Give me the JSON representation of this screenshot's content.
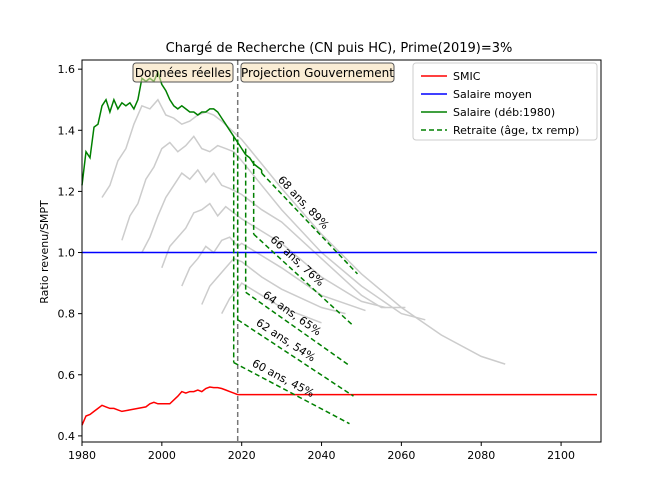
{
  "chart_data": {
    "type": "line",
    "title": "Chargé de Recherche (CN puis HC), Prime(2019)=3%",
    "xlabel": "",
    "ylabel": "Ratio revenu/SMPT",
    "xlim": [
      1980,
      2110
    ],
    "ylim": [
      0.38,
      1.63
    ],
    "xticks": [
      1980,
      2000,
      2020,
      2040,
      2060,
      2080,
      2100
    ],
    "yticks": [
      0.4,
      0.6,
      0.8,
      1.0,
      1.2,
      1.4,
      1.6
    ],
    "grid": false,
    "legend_position": "top-right",
    "divider_x": 2019,
    "region_labels": [
      "Données réelles",
      "Projection Gouvernement"
    ],
    "series": [
      {
        "name": "SMIC",
        "color": "#ff0000",
        "x": [
          1980,
          1981,
          1982,
          1983,
          1984,
          1985,
          1986,
          1987,
          1988,
          1989,
          1990,
          1992,
          1994,
          1996,
          1997,
          1998,
          1999,
          2000,
          2002,
          2004,
          2005,
          2006,
          2007,
          2008,
          2009,
          2010,
          2011,
          2012,
          2013,
          2014,
          2015,
          2016,
          2017,
          2018,
          2019,
          2109
        ],
        "values": [
          0.435,
          0.465,
          0.47,
          0.48,
          0.49,
          0.5,
          0.495,
          0.49,
          0.49,
          0.485,
          0.48,
          0.485,
          0.49,
          0.495,
          0.505,
          0.51,
          0.505,
          0.505,
          0.505,
          0.53,
          0.545,
          0.54,
          0.545,
          0.545,
          0.55,
          0.545,
          0.555,
          0.56,
          0.558,
          0.558,
          0.555,
          0.55,
          0.545,
          0.54,
          0.535,
          0.535
        ]
      },
      {
        "name": "Salaire moyen",
        "color": "#0000ff",
        "x": [
          1980,
          2109
        ],
        "values": [
          1.0,
          1.0
        ]
      },
      {
        "name": "Salaire (déb:1980)",
        "color": "#008000",
        "x": [
          1980,
          1981,
          1982,
          1983,
          1984,
          1985,
          1986,
          1987,
          1988,
          1989,
          1990,
          1991,
          1992,
          1993,
          1994,
          1995,
          1996,
          1997,
          1998,
          1999,
          2000,
          2001,
          2002,
          2003,
          2004,
          2005,
          2006,
          2007,
          2008,
          2009,
          2010,
          2011,
          2012,
          2013,
          2014,
          2015,
          2016,
          2017,
          2018,
          2019,
          2020,
          2021,
          2022,
          2023,
          2024,
          2025
        ],
        "values": [
          1.22,
          1.33,
          1.31,
          1.41,
          1.42,
          1.48,
          1.5,
          1.46,
          1.5,
          1.47,
          1.49,
          1.48,
          1.49,
          1.47,
          1.5,
          1.57,
          1.56,
          1.57,
          1.56,
          1.59,
          1.55,
          1.53,
          1.5,
          1.48,
          1.47,
          1.48,
          1.47,
          1.46,
          1.46,
          1.45,
          1.46,
          1.46,
          1.47,
          1.47,
          1.46,
          1.44,
          1.42,
          1.4,
          1.38,
          1.36,
          1.34,
          1.32,
          1.31,
          1.29,
          1.28,
          1.27
        ]
      }
    ],
    "retirement_legend": "Retraite (âge, tx remp)",
    "retirement_color": "#008000",
    "retirement_lines": [
      {
        "label": "60 ans, 45%",
        "x": [
          2018,
          2047
        ],
        "values": [
          0.64,
          0.44
        ]
      },
      {
        "label": "62 ans, 54%",
        "x": [
          2019,
          2048
        ],
        "values": [
          0.78,
          0.53
        ]
      },
      {
        "label": "64 ans, 65%",
        "x": [
          2021,
          2047
        ],
        "values": [
          0.87,
          0.63
        ]
      },
      {
        "label": "66 ans, 76%",
        "x": [
          2023,
          2048
        ],
        "values": [
          1.06,
          0.76
        ]
      },
      {
        "label": "68 ans, 89%",
        "x": [
          2025,
          2049
        ],
        "values": [
          1.26,
          0.93
        ]
      }
    ],
    "vertical_drops": [
      {
        "x": 2018,
        "values": [
          1.38,
          0.64
        ]
      },
      {
        "x": 2019,
        "values": [
          1.37,
          0.78
        ]
      },
      {
        "x": 2021,
        "values": [
          1.34,
          0.87
        ]
      },
      {
        "x": 2023,
        "values": [
          1.3,
          1.06
        ]
      },
      {
        "x": 2025,
        "values": [
          1.27,
          1.26
        ]
      }
    ],
    "gray_color": "#cccccc",
    "gray_series": [
      {
        "x": [
          1985,
          1987,
          1989,
          1991,
          1993,
          1995,
          1997,
          1999,
          2001,
          2003,
          2005,
          2007,
          2009,
          2011,
          2013,
          2015,
          2020,
          2025,
          2030,
          2040,
          2050,
          2060,
          2070,
          2080,
          2086
        ],
        "values": [
          1.18,
          1.22,
          1.3,
          1.34,
          1.42,
          1.48,
          1.47,
          1.5,
          1.45,
          1.44,
          1.42,
          1.43,
          1.45,
          1.46,
          1.45,
          1.43,
          1.37,
          1.29,
          1.21,
          1.06,
          0.93,
          0.82,
          0.73,
          0.66,
          0.635
        ]
      },
      {
        "x": [
          1990,
          1992,
          1994,
          1996,
          1998,
          2000,
          2002,
          2004,
          2006,
          2008,
          2010,
          2012,
          2014,
          2016,
          2018,
          2020,
          2025,
          2030,
          2040,
          2050,
          2060,
          2066
        ],
        "values": [
          1.04,
          1.12,
          1.16,
          1.24,
          1.28,
          1.34,
          1.36,
          1.33,
          1.35,
          1.38,
          1.34,
          1.33,
          1.35,
          1.34,
          1.33,
          1.3,
          1.22,
          1.14,
          1.0,
          0.89,
          0.8,
          0.78
        ]
      },
      {
        "x": [
          1995,
          1997,
          1999,
          2001,
          2003,
          2005,
          2007,
          2009,
          2011,
          2013,
          2015,
          2017,
          2020,
          2025,
          2030,
          2040,
          2050,
          2055,
          2061
        ],
        "values": [
          1.0,
          1.05,
          1.12,
          1.18,
          1.22,
          1.26,
          1.24,
          1.27,
          1.23,
          1.26,
          1.22,
          1.21,
          1.19,
          1.14,
          1.1,
          0.98,
          0.86,
          0.82,
          0.82
        ]
      },
      {
        "x": [
          2000,
          2002,
          2004,
          2006,
          2008,
          2010,
          2012,
          2014,
          2016,
          2018,
          2020,
          2025,
          2030,
          2040,
          2050,
          2056
        ],
        "values": [
          0.95,
          1.02,
          1.05,
          1.08,
          1.13,
          1.14,
          1.16,
          1.12,
          1.15,
          1.13,
          1.11,
          1.07,
          1.03,
          0.92,
          0.84,
          0.82
        ]
      },
      {
        "x": [
          2005,
          2007,
          2009,
          2011,
          2013,
          2015,
          2017,
          2019,
          2020,
          2025,
          2030,
          2040,
          2051
        ],
        "values": [
          0.89,
          0.95,
          0.98,
          1.02,
          1.0,
          1.04,
          1.05,
          1.02,
          1.03,
          0.99,
          0.95,
          0.86,
          0.81
        ]
      },
      {
        "x": [
          2010,
          2012,
          2014,
          2016,
          2018,
          2020,
          2025,
          2030,
          2040,
          2046
        ],
        "values": [
          0.83,
          0.89,
          0.92,
          0.95,
          0.98,
          0.97,
          0.92,
          0.88,
          0.82,
          0.8
        ]
      },
      {
        "x": [
          2015,
          2017,
          2019,
          2020,
          2025,
          2030,
          2040
        ],
        "values": [
          0.8,
          0.85,
          0.88,
          0.9,
          0.86,
          0.82,
          0.77
        ]
      }
    ]
  }
}
